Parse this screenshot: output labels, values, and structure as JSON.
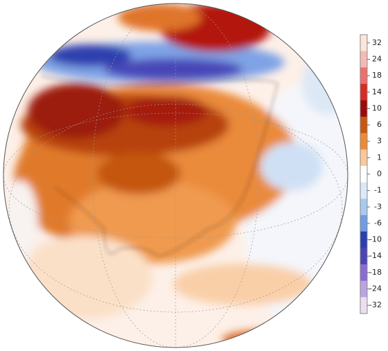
{
  "colorbar": {
    "ticks": [
      32,
      24,
      18,
      14,
      10,
      6,
      3,
      1,
      0,
      -1,
      -3,
      -6,
      -10,
      -14,
      -18,
      -24,
      -32
    ],
    "colors": [
      "#fbe6dc",
      "#f6b9b4",
      "#ee6f6c",
      "#d92b24",
      "#9c0a0a",
      "#c9580f",
      "#ee8a35",
      "#fac89a",
      "#ffffff",
      "#dbe9f8",
      "#a9c9ef",
      "#6f9de3",
      "#2a3fae",
      "#4d44b6",
      "#8a6cd0",
      "#bba4e0",
      "#ecdff2"
    ]
  }
}
